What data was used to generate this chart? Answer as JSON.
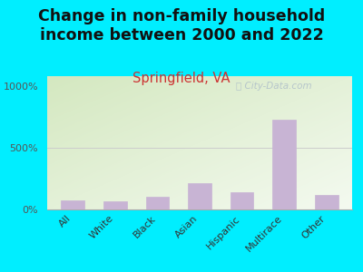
{
  "title": "Change in non-family household\nincome between 2000 and 2022",
  "subtitle": "Springfield, VA",
  "categories": [
    "All",
    "White",
    "Black",
    "Asian",
    "Hispanic",
    "Multirace",
    "Other"
  ],
  "values": [
    75,
    65,
    100,
    215,
    140,
    730,
    120
  ],
  "bar_color": "#c8b4d4",
  "background_color": "#00eeff",
  "title_fontsize": 12.5,
  "title_color": "#111111",
  "subtitle_fontsize": 10.5,
  "subtitle_color": "#cc3333",
  "yticks": [
    0,
    500,
    1000
  ],
  "ytick_labels": [
    "0%",
    "500%",
    "1000%"
  ],
  "watermark": "Ⓢ City-Data.com",
  "ylim": [
    0,
    1080
  ],
  "plot_bg_color_tl": "#d4e8c0",
  "plot_bg_color_br": "#f4faf0"
}
